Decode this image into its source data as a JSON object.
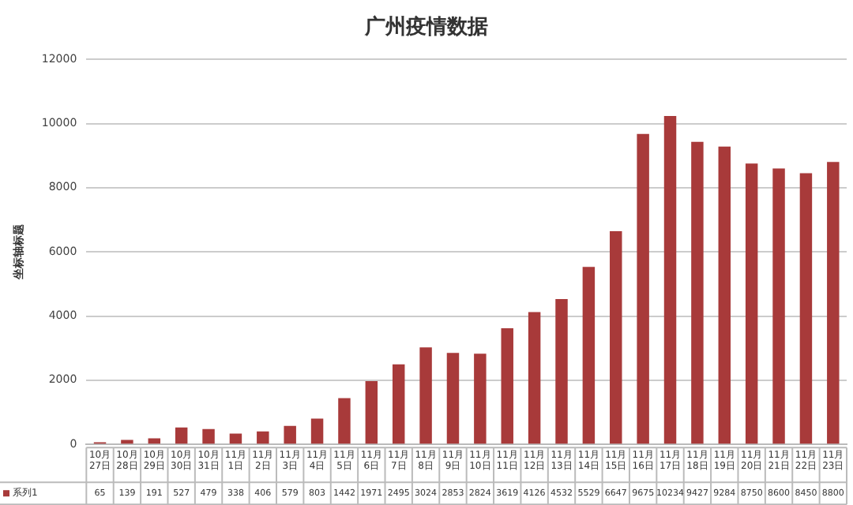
{
  "chart_data": {
    "type": "bar",
    "title": "广州疫情数据",
    "ylabel": "坐标轴标题",
    "categories": [
      "10月27日",
      "10月28日",
      "10月29日",
      "10月30日",
      "10月31日",
      "11月1日",
      "11月2日",
      "11月3日",
      "11月4日",
      "11月5日",
      "11月6日",
      "11月7日",
      "11月8日",
      "11月9日",
      "11月10日",
      "11月11日",
      "11月12日",
      "11月13日",
      "11月14日",
      "11月15日",
      "11月16日",
      "11月17日",
      "11月18日",
      "11月19日",
      "11月20日",
      "11月21日",
      "11月22日",
      "11月23日"
    ],
    "series": [
      {
        "name": "系列1",
        "color": "#a83a3a",
        "values": [
          65,
          139,
          191,
          527,
          479,
          338,
          406,
          579,
          803,
          1442,
          1971,
          2495,
          3024,
          2853,
          2824,
          3619,
          4126,
          4532,
          5529,
          6647,
          9675,
          10234,
          9427,
          9284,
          8750,
          8600,
          8450,
          8800
        ]
      }
    ],
    "ylim": [
      0,
      12000
    ],
    "yticks": [
      0,
      2000,
      4000,
      6000,
      8000,
      10000,
      12000
    ],
    "grid": "y",
    "legend": "bottom",
    "data_labels": true
  }
}
